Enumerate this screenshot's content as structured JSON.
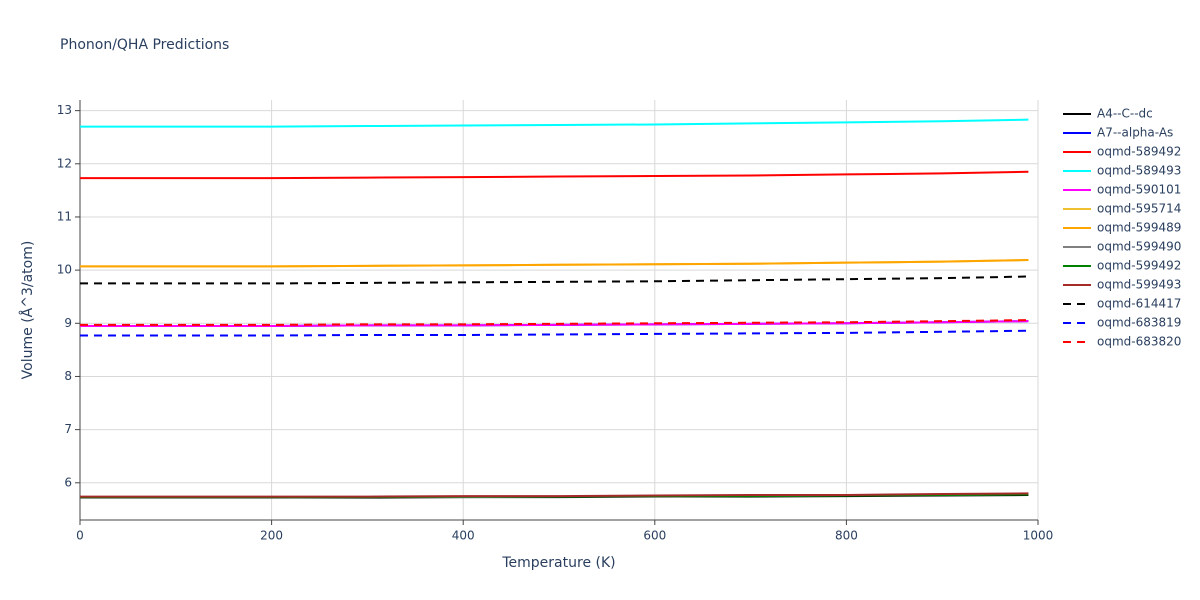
{
  "chart_data": {
    "type": "line",
    "title": "Phonon/QHA Predictions",
    "x_label": "Temperature (K)",
    "y_label": "Volume (Å^3/atom)",
    "x": [
      0,
      100,
      200,
      300,
      400,
      500,
      600,
      700,
      800,
      900,
      990
    ],
    "xlim": [
      0,
      1000
    ],
    "xticks": [
      0,
      200,
      400,
      600,
      800,
      1000
    ],
    "ylim": [
      5.3,
      13.2
    ],
    "yticks": [
      6,
      7,
      8,
      9,
      10,
      11,
      12,
      13
    ],
    "grid": true,
    "legend": "right",
    "series": [
      {
        "name": "A4--C--dc",
        "color": "#000000",
        "dash": false,
        "values": [
          5.72,
          5.72,
          5.72,
          5.72,
          5.73,
          5.73,
          5.74,
          5.74,
          5.75,
          5.76,
          5.77
        ]
      },
      {
        "name": "A7--alpha-As",
        "color": "#0000ff",
        "dash": false,
        "values": [
          8.95,
          8.95,
          8.95,
          8.96,
          8.96,
          8.97,
          8.98,
          8.99,
          9.0,
          9.02,
          9.04
        ]
      },
      {
        "name": "oqmd-589492",
        "color": "#ff0000",
        "dash": false,
        "values": [
          11.73,
          11.73,
          11.73,
          11.74,
          11.75,
          11.76,
          11.77,
          11.78,
          11.8,
          11.82,
          11.85
        ]
      },
      {
        "name": "oqmd-589493",
        "color": "#00ffff",
        "dash": false,
        "values": [
          12.7,
          12.7,
          12.7,
          12.71,
          12.72,
          12.73,
          12.74,
          12.76,
          12.78,
          12.8,
          12.83
        ]
      },
      {
        "name": "oqmd-590101",
        "color": "#ff00ff",
        "dash": false,
        "values": [
          8.95,
          8.95,
          8.95,
          8.96,
          8.96,
          8.97,
          8.98,
          8.99,
          9.0,
          9.02,
          9.04
        ]
      },
      {
        "name": "oqmd-595714",
        "color": "#f0c030",
        "dash": false,
        "values": [
          10.07,
          10.07,
          10.07,
          10.08,
          10.09,
          10.1,
          10.11,
          10.12,
          10.14,
          10.16,
          10.19
        ]
      },
      {
        "name": "oqmd-599489",
        "color": "#ffa500",
        "dash": false,
        "values": [
          10.07,
          10.07,
          10.07,
          10.08,
          10.09,
          10.1,
          10.11,
          10.12,
          10.14,
          10.16,
          10.19
        ]
      },
      {
        "name": "oqmd-599490",
        "color": "#808080",
        "dash": false,
        "values": [
          5.72,
          5.72,
          5.72,
          5.73,
          5.73,
          5.74,
          5.74,
          5.75,
          5.76,
          5.77,
          5.78
        ]
      },
      {
        "name": "oqmd-599492",
        "color": "#008000",
        "dash": false,
        "values": [
          5.73,
          5.73,
          5.73,
          5.73,
          5.74,
          5.74,
          5.75,
          5.75,
          5.76,
          5.77,
          5.78
        ]
      },
      {
        "name": "oqmd-599493",
        "color": "#a52a2a",
        "dash": false,
        "values": [
          5.74,
          5.74,
          5.74,
          5.74,
          5.75,
          5.75,
          5.76,
          5.77,
          5.77,
          5.79,
          5.8
        ]
      },
      {
        "name": "oqmd-614417",
        "color": "#000000",
        "dash": true,
        "values": [
          9.75,
          9.75,
          9.75,
          9.76,
          9.77,
          9.78,
          9.79,
          9.81,
          9.83,
          9.85,
          9.88
        ]
      },
      {
        "name": "oqmd-683819",
        "color": "#0000ff",
        "dash": true,
        "values": [
          8.77,
          8.77,
          8.77,
          8.78,
          8.78,
          8.79,
          8.8,
          8.81,
          8.82,
          8.84,
          8.86
        ]
      },
      {
        "name": "oqmd-683820",
        "color": "#ff0000",
        "dash": true,
        "values": [
          8.97,
          8.97,
          8.97,
          8.98,
          8.98,
          8.99,
          9.0,
          9.01,
          9.02,
          9.04,
          9.06
        ]
      }
    ]
  }
}
